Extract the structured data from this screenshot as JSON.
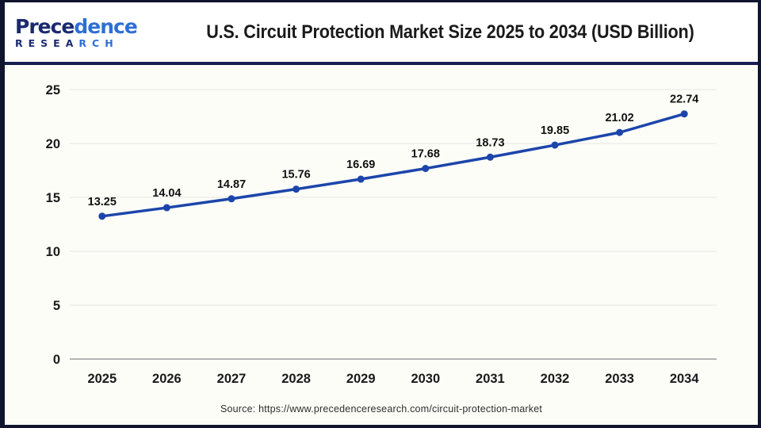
{
  "header": {
    "logo": {
      "brand_left": "Prece",
      "brand_right": "dence",
      "research_left": "RESEA",
      "research_right": "RCH"
    },
    "title": "U.S. Circuit Protection Market Size 2025 to 2034 (USD Billion)"
  },
  "chart_data": {
    "type": "line",
    "title": "U.S. Circuit Protection Market Size 2025 to 2034 (USD Billion)",
    "categories": [
      "2025",
      "2026",
      "2027",
      "2028",
      "2029",
      "2030",
      "2031",
      "2032",
      "2033",
      "2034"
    ],
    "series": [
      {
        "name": "U.S. Circuit Protection Market Size (USD Billion)",
        "values": [
          13.25,
          14.04,
          14.87,
          15.76,
          16.69,
          17.68,
          18.73,
          19.85,
          21.02,
          22.74
        ]
      }
    ],
    "xlabel": "",
    "ylabel": "",
    "ylim": [
      0,
      25
    ],
    "yticks": [
      0,
      5,
      10,
      15,
      20,
      25
    ],
    "grid": true,
    "legend": "none",
    "line_color": "#1c45ab",
    "marker": "circle",
    "data_labels_shown": true
  },
  "footer": {
    "source": "Source: https://www.precedenceresearch.com/circuit-protection-market"
  },
  "colors": {
    "accent_line": "#1c45ab",
    "frame_border": "#10142e",
    "divider": "#181d52",
    "logo_navy": "#1b2a6e",
    "logo_blue": "#2f6fd4",
    "gridline": "#eaeae6",
    "axis_line": "#b5b5b5",
    "body_background": "#fdfdf8"
  }
}
